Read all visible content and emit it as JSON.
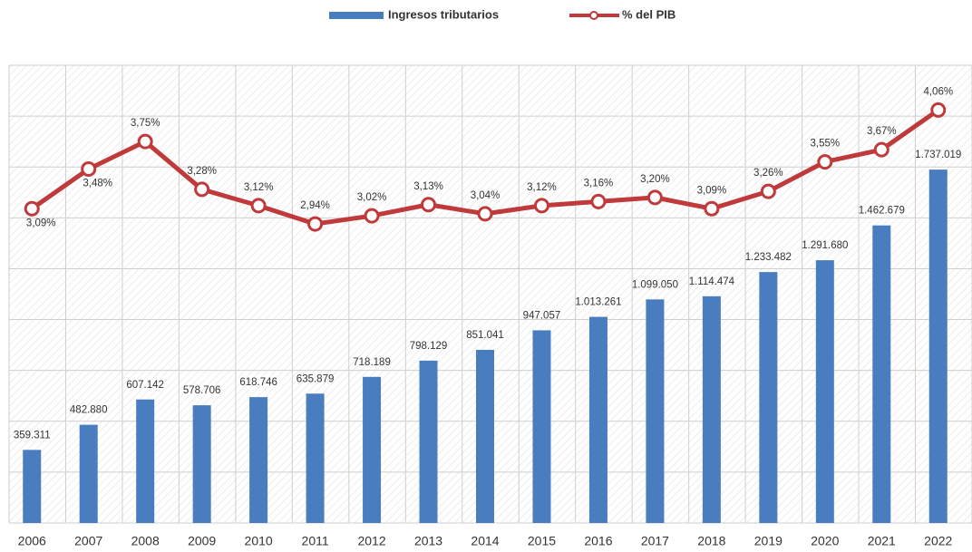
{
  "chart_data": {
    "type": "bar",
    "categories": [
      "2006",
      "2007",
      "2008",
      "2009",
      "2010",
      "2011",
      "2012",
      "2013",
      "2014",
      "2015",
      "2016",
      "2017",
      "2018",
      "2019",
      "2020",
      "2021",
      "2022"
    ],
    "series": [
      {
        "name": "Ingresos tributarios",
        "type": "bar",
        "color": "#4a7cc0",
        "values": [
          359311,
          482880,
          607142,
          578706,
          618746,
          635879,
          718189,
          798129,
          851041,
          947057,
          1013261,
          1099050,
          1114474,
          1233482,
          1291680,
          1462679,
          1737019
        ],
        "value_labels": [
          "359.311",
          "482.880",
          "607.142",
          "578.706",
          "618.746",
          "635.879",
          "718.189",
          "798.129",
          "851.041",
          "947.057",
          "1.013.261",
          "1.099.050",
          "1.114.474",
          "1.233.482",
          "1.291.680",
          "1.462.679",
          "1.737.019"
        ]
      },
      {
        "name": "% del PIB",
        "type": "line",
        "axis": "y2",
        "color": "#c0393b",
        "values": [
          3.09,
          3.48,
          3.75,
          3.28,
          3.12,
          2.94,
          3.02,
          3.13,
          3.04,
          3.12,
          3.16,
          3.2,
          3.09,
          3.26,
          3.55,
          3.67,
          4.06
        ],
        "value_labels": [
          "3,09%",
          "3,48%",
          "3,75%",
          "3,28%",
          "3,12%",
          "2,94%",
          "3,02%",
          "3,13%",
          "3,04%",
          "3,12%",
          "3,16%",
          "3,20%",
          "3,09%",
          "3,26%",
          "3,55%",
          "3,67%",
          "4,06%"
        ]
      }
    ],
    "ylim": [
      0,
      2250000
    ],
    "yticks": [
      0,
      250000,
      500000,
      750000,
      1000000,
      1250000,
      1500000,
      1750000,
      2000000,
      2250000
    ],
    "y2lim": [
      0,
      4.5
    ],
    "grid": true,
    "legend": "top"
  }
}
